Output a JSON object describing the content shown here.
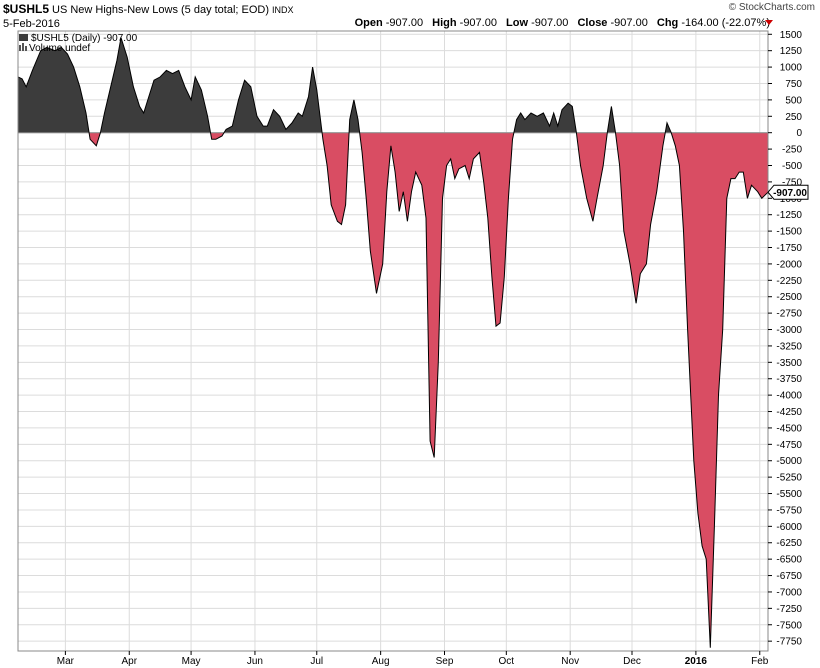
{
  "header": {
    "symbol": "$USHL5",
    "description": "US New Highs-New Lows (5 day total; EOD)",
    "exchange": "INDX",
    "date": "5-Feb-2016",
    "watermark": "© StockCharts.com",
    "open_label": "Open",
    "open_value": "-907.00",
    "high_label": "High",
    "high_value": "-907.00",
    "low_label": "Low",
    "low_value": "-907.00",
    "close_label": "Close",
    "close_value": "-907.00",
    "chg_label": "Chg",
    "chg_value": "-164.00 (-22.07%)"
  },
  "legend": {
    "series_text": "$USHL5 (Daily) -907.00",
    "volume_text": "Volume undef"
  },
  "last_value_badge": "-907.00",
  "colors": {
    "positive": "#3c3c3c",
    "negative": "#d94d63",
    "grid": "#dcdcdc",
    "line": "#000000"
  },
  "chart_data": {
    "type": "area",
    "title": "$USHL5 US New Highs-New Lows (5 day total; EOD)",
    "ylim": [
      -7900,
      1550
    ],
    "y_ticks": [
      1500,
      1250,
      1000,
      750,
      500,
      250,
      0,
      -250,
      -500,
      -750,
      -1000,
      -1250,
      -1500,
      -1750,
      -2000,
      -2250,
      -2500,
      -2750,
      -3000,
      -3250,
      -3500,
      -3750,
      -4000,
      -4250,
      -4500,
      -4750,
      -5000,
      -5250,
      -5500,
      -5750,
      -6000,
      -6250,
      -6500,
      -6750,
      -7000,
      -7250,
      -7500,
      -7750
    ],
    "x_ticks": [
      {
        "label": "Mar",
        "date": "2015-03-01"
      },
      {
        "label": "Apr",
        "date": "2015-04-01"
      },
      {
        "label": "May",
        "date": "2015-05-01"
      },
      {
        "label": "Jun",
        "date": "2015-06-01"
      },
      {
        "label": "Jul",
        "date": "2015-07-01"
      },
      {
        "label": "Aug",
        "date": "2015-08-01"
      },
      {
        "label": "Sep",
        "date": "2015-09-01"
      },
      {
        "label": "Oct",
        "date": "2015-10-01"
      },
      {
        "label": "Nov",
        "date": "2015-11-01"
      },
      {
        "label": "Dec",
        "date": "2015-12-01"
      },
      {
        "label": "2016",
        "date": "2016-01-01",
        "bold": true
      },
      {
        "label": "Feb",
        "date": "2016-02-01"
      }
    ],
    "x_range": [
      "2015-02-06",
      "2016-02-05"
    ],
    "points": [
      [
        "2015-02-06",
        850
      ],
      [
        "2015-02-08",
        820
      ],
      [
        "2015-02-10",
        700
      ],
      [
        "2015-02-13",
        950
      ],
      [
        "2015-02-17",
        1250
      ],
      [
        "2015-02-20",
        1300
      ],
      [
        "2015-02-24",
        1250
      ],
      [
        "2015-02-27",
        1300
      ],
      [
        "2015-03-02",
        1200
      ],
      [
        "2015-03-05",
        1000
      ],
      [
        "2015-03-08",
        700
      ],
      [
        "2015-03-11",
        300
      ],
      [
        "2015-03-13",
        -100
      ],
      [
        "2015-03-16",
        -200
      ],
      [
        "2015-03-18",
        0
      ],
      [
        "2015-03-20",
        300
      ],
      [
        "2015-03-23",
        700
      ],
      [
        "2015-03-26",
        1100
      ],
      [
        "2015-03-28",
        1450
      ],
      [
        "2015-03-31",
        1150
      ],
      [
        "2015-04-03",
        700
      ],
      [
        "2015-04-06",
        400
      ],
      [
        "2015-04-08",
        300
      ],
      [
        "2015-04-10",
        500
      ],
      [
        "2015-04-13",
        800
      ],
      [
        "2015-04-16",
        850
      ],
      [
        "2015-04-19",
        950
      ],
      [
        "2015-04-22",
        900
      ],
      [
        "2015-04-25",
        950
      ],
      [
        "2015-04-28",
        700
      ],
      [
        "2015-05-01",
        500
      ],
      [
        "2015-05-03",
        850
      ],
      [
        "2015-05-06",
        650
      ],
      [
        "2015-05-09",
        250
      ],
      [
        "2015-05-11",
        -100
      ],
      [
        "2015-05-13",
        -100
      ],
      [
        "2015-05-16",
        -50
      ],
      [
        "2015-05-18",
        50
      ],
      [
        "2015-05-21",
        100
      ],
      [
        "2015-05-24",
        500
      ],
      [
        "2015-05-27",
        800
      ],
      [
        "2015-05-30",
        700
      ],
      [
        "2015-06-02",
        250
      ],
      [
        "2015-06-05",
        100
      ],
      [
        "2015-06-07",
        100
      ],
      [
        "2015-06-10",
        350
      ],
      [
        "2015-06-13",
        250
      ],
      [
        "2015-06-16",
        50
      ],
      [
        "2015-06-19",
        150
      ],
      [
        "2015-06-22",
        300
      ],
      [
        "2015-06-24",
        250
      ],
      [
        "2015-06-27",
        550
      ],
      [
        "2015-06-29",
        1000
      ],
      [
        "2015-07-01",
        650
      ],
      [
        "2015-07-04",
        -100
      ],
      [
        "2015-07-06",
        -500
      ],
      [
        "2015-07-08",
        -1100
      ],
      [
        "2015-07-11",
        -1350
      ],
      [
        "2015-07-13",
        -1400
      ],
      [
        "2015-07-15",
        -1100
      ],
      [
        "2015-07-17",
        200
      ],
      [
        "2015-07-19",
        500
      ],
      [
        "2015-07-21",
        200
      ],
      [
        "2015-07-23",
        -300
      ],
      [
        "2015-07-25",
        -1000
      ],
      [
        "2015-07-27",
        -1800
      ],
      [
        "2015-07-30",
        -2450
      ],
      [
        "2015-08-02",
        -2000
      ],
      [
        "2015-08-04",
        -900
      ],
      [
        "2015-08-06",
        -200
      ],
      [
        "2015-08-08",
        -600
      ],
      [
        "2015-08-10",
        -1200
      ],
      [
        "2015-08-12",
        -900
      ],
      [
        "2015-08-14",
        -1350
      ],
      [
        "2015-08-16",
        -900
      ],
      [
        "2015-08-18",
        -600
      ],
      [
        "2015-08-21",
        -800
      ],
      [
        "2015-08-23",
        -1300
      ],
      [
        "2015-08-25",
        -4700
      ],
      [
        "2015-08-27",
        -4950
      ],
      [
        "2015-08-29",
        -3500
      ],
      [
        "2015-08-31",
        -1000
      ],
      [
        "2015-09-02",
        -500
      ],
      [
        "2015-09-04",
        -400
      ],
      [
        "2015-09-06",
        -700
      ],
      [
        "2015-09-08",
        -550
      ],
      [
        "2015-09-11",
        -500
      ],
      [
        "2015-09-13",
        -700
      ],
      [
        "2015-09-15",
        -400
      ],
      [
        "2015-09-18",
        -300
      ],
      [
        "2015-09-20",
        -750
      ],
      [
        "2015-09-22",
        -1300
      ],
      [
        "2015-09-24",
        -2200
      ],
      [
        "2015-09-26",
        -2950
      ],
      [
        "2015-09-28",
        -2900
      ],
      [
        "2015-09-30",
        -2200
      ],
      [
        "2015-10-02",
        -1000
      ],
      [
        "2015-10-04",
        -100
      ],
      [
        "2015-10-06",
        200
      ],
      [
        "2015-10-08",
        300
      ],
      [
        "2015-10-10",
        200
      ],
      [
        "2015-10-13",
        300
      ],
      [
        "2015-10-16",
        250
      ],
      [
        "2015-10-19",
        300
      ],
      [
        "2015-10-22",
        100
      ],
      [
        "2015-10-24",
        300
      ],
      [
        "2015-10-26",
        100
      ],
      [
        "2015-10-28",
        350
      ],
      [
        "2015-10-31",
        450
      ],
      [
        "2015-11-02",
        400
      ],
      [
        "2015-11-04",
        0
      ],
      [
        "2015-11-06",
        -500
      ],
      [
        "2015-11-09",
        -1000
      ],
      [
        "2015-11-12",
        -1350
      ],
      [
        "2015-11-14",
        -1000
      ],
      [
        "2015-11-17",
        -500
      ],
      [
        "2015-11-19",
        0
      ],
      [
        "2015-11-21",
        400
      ],
      [
        "2015-11-23",
        0
      ],
      [
        "2015-11-25",
        -500
      ],
      [
        "2015-11-27",
        -1500
      ],
      [
        "2015-11-30",
        -2000
      ],
      [
        "2015-12-03",
        -2600
      ],
      [
        "2015-12-05",
        -2150
      ],
      [
        "2015-12-08",
        -2000
      ],
      [
        "2015-12-10",
        -1400
      ],
      [
        "2015-12-13",
        -900
      ],
      [
        "2015-12-16",
        -200
      ],
      [
        "2015-12-18",
        150
      ],
      [
        "2015-12-20",
        0
      ],
      [
        "2015-12-22",
        -200
      ],
      [
        "2015-12-24",
        -500
      ],
      [
        "2015-12-26",
        -1500
      ],
      [
        "2015-12-28",
        -3000
      ],
      [
        "2015-12-31",
        -5000
      ],
      [
        "2016-01-02",
        -5800
      ],
      [
        "2016-01-04",
        -6300
      ],
      [
        "2016-01-06",
        -6500
      ],
      [
        "2016-01-08",
        -7850
      ],
      [
        "2016-01-10",
        -6000
      ],
      [
        "2016-01-12",
        -4000
      ],
      [
        "2016-01-14",
        -3000
      ],
      [
        "2016-01-16",
        -1000
      ],
      [
        "2016-01-18",
        -700
      ],
      [
        "2016-01-20",
        -700
      ],
      [
        "2016-01-22",
        -600
      ],
      [
        "2016-01-24",
        -600
      ],
      [
        "2016-01-26",
        -1000
      ],
      [
        "2016-01-28",
        -800
      ],
      [
        "2016-01-31",
        -900
      ],
      [
        "2016-02-02",
        -1000
      ],
      [
        "2016-02-05",
        -907
      ]
    ],
    "grid": true,
    "y_axis_side": "right"
  }
}
